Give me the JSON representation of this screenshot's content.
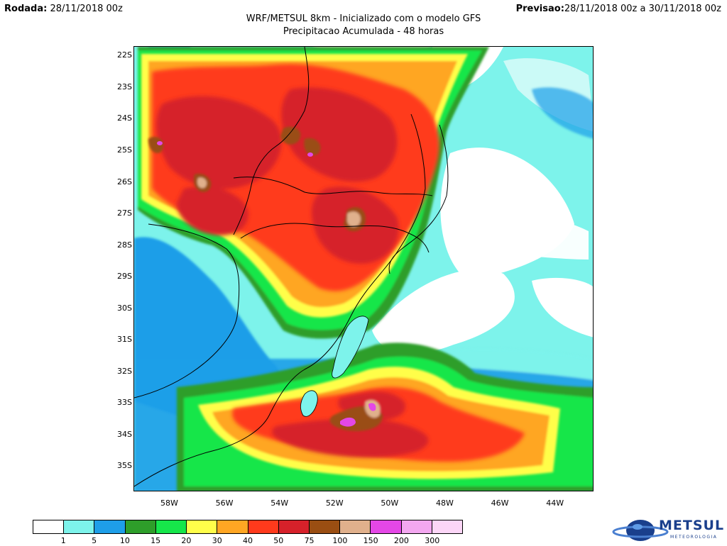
{
  "header": {
    "run_label": "Rodada:",
    "run_value": "28/11/2018 00z",
    "forecast_label": "Previsao:",
    "forecast_value": "28/11/2018 00z a 30/11/2018 00z",
    "title": "WRF/METSUL 8km - Inicializado com o modelo GFS",
    "subtitle": "Precipitacao Acumulada - 48 horas"
  },
  "map": {
    "lat_labels": [
      "22S",
      "23S",
      "24S",
      "25S",
      "26S",
      "27S",
      "28S",
      "29S",
      "30S",
      "31S",
      "32S",
      "33S",
      "34S",
      "35S"
    ],
    "lon_labels": [
      "58W",
      "56W",
      "54W",
      "52W",
      "50W",
      "48W",
      "46W",
      "44W"
    ],
    "extent": {
      "lon_min": -59.3,
      "lon_max": -42.6,
      "lat_max": -21.7,
      "lat_min": -35.8
    }
  },
  "legend": {
    "thresholds": [
      "1",
      "5",
      "10",
      "15",
      "20",
      "30",
      "40",
      "50",
      "75",
      "100",
      "150",
      "200",
      "300"
    ],
    "colors": [
      "#ffffff",
      "#7df3eb",
      "#1e9ee8",
      "#2e9e2a",
      "#16e64a",
      "#fffe4a",
      "#ffa623",
      "#ff3a1c",
      "#d6212a",
      "#9a4e12",
      "#e0b08c",
      "#e447e6",
      "#f3a7f0",
      "#fcd6f7"
    ]
  },
  "brand": {
    "name": "METSUL",
    "tagline": "METEOROLOGIA"
  }
}
